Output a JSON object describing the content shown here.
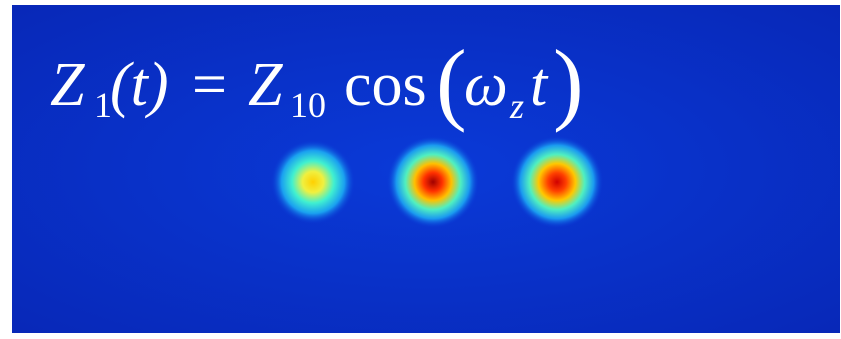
{
  "equation": {
    "lhs": "Z",
    "lhs_sub": "1",
    "lhs_arg": "(t)",
    "eq": "=",
    "rhs": "Z",
    "rhs_sub": "10",
    "func": "cos",
    "arg_open": "(",
    "omega": "ω",
    "omega_sub": "z",
    "arg_var": "t",
    "arg_close": ")"
  }
}
